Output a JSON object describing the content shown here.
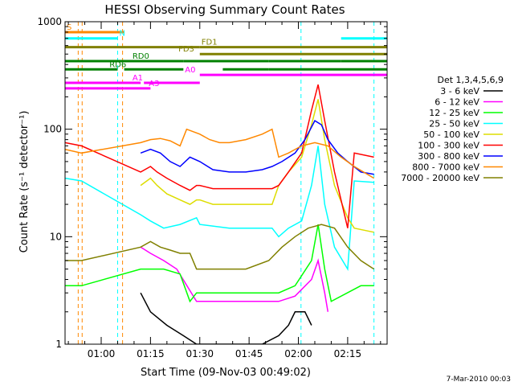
{
  "chart_data": {
    "type": "line",
    "title": "HESSI Observing Summary Count Rates",
    "xlabel": "Start Time (09-Nov-03 00:49:02)",
    "ylabel": "Count Rate (s⁻¹ detector⁻¹)",
    "yscale": "log",
    "ylim": [
      1,
      1000
    ],
    "xlim_minutes": [
      0,
      98
    ],
    "y_tick_labels": [
      "1",
      "10",
      "100",
      "1000"
    ],
    "x_ticks": [
      {
        "label": "01:00",
        "t": 11
      },
      {
        "label": "01:15",
        "t": 26
      },
      {
        "label": "01:30",
        "t": 41
      },
      {
        "label": "01:45",
        "t": 56
      },
      {
        "label": "02:00",
        "t": 71
      },
      {
        "label": "02:15",
        "t": 86
      }
    ],
    "legend_title": "Det 1,3,4,5,6,9",
    "legend_position": "right",
    "footer": "7-Mar-2010 00:03",
    "series": [
      {
        "name": "3 - 6 keV",
        "color": "#000000",
        "points": [
          [
            23,
            3
          ],
          [
            26,
            2
          ],
          [
            31,
            1.5
          ],
          [
            36,
            1.2
          ],
          [
            40,
            1
          ],
          [
            43,
            1
          ],
          [
            50,
            1
          ],
          [
            55,
            1
          ],
          [
            60,
            1
          ],
          [
            65,
            1.2
          ],
          [
            68,
            1.5
          ],
          [
            70,
            2
          ],
          [
            73,
            2
          ],
          [
            75,
            1.5
          ]
        ]
      },
      {
        "name": "6 - 12 keV",
        "color": "#ff00ff",
        "points": [
          [
            23,
            8
          ],
          [
            26,
            7
          ],
          [
            30,
            6
          ],
          [
            34,
            5
          ],
          [
            40,
            2.5
          ],
          [
            45,
            2.5
          ],
          [
            55,
            2.5
          ],
          [
            65,
            2.5
          ],
          [
            70,
            2.8
          ],
          [
            75,
            4
          ],
          [
            77,
            6
          ],
          [
            79,
            3
          ],
          [
            80,
            2
          ]
        ]
      },
      {
        "name": "12 - 25 keV",
        "color": "#00ff00",
        "points": [
          [
            0,
            3.5
          ],
          [
            5,
            3.5
          ],
          [
            23,
            5
          ],
          [
            26,
            5
          ],
          [
            30,
            5
          ],
          [
            35,
            4.5
          ],
          [
            38,
            2.5
          ],
          [
            40,
            3
          ],
          [
            45,
            3
          ],
          [
            55,
            3
          ],
          [
            65,
            3
          ],
          [
            70,
            3.5
          ],
          [
            75,
            6
          ],
          [
            77,
            13
          ],
          [
            79,
            5
          ],
          [
            81,
            2.5
          ],
          [
            90,
            3.5
          ],
          [
            94,
            3.5
          ]
        ]
      },
      {
        "name": "25 - 50 keV",
        "color": "#00ffff",
        "points": [
          [
            0,
            35
          ],
          [
            5,
            33
          ],
          [
            23,
            16
          ],
          [
            26,
            14
          ],
          [
            30,
            12
          ],
          [
            35,
            13
          ],
          [
            40,
            15
          ],
          [
            41,
            13
          ],
          [
            50,
            12
          ],
          [
            55,
            12
          ],
          [
            60,
            12
          ],
          [
            63,
            12
          ],
          [
            65,
            10
          ],
          [
            68,
            12
          ],
          [
            72,
            14
          ],
          [
            75,
            30
          ],
          [
            77,
            70
          ],
          [
            79,
            20
          ],
          [
            82,
            8
          ],
          [
            86,
            5
          ],
          [
            88,
            33
          ],
          [
            94,
            32
          ]
        ]
      },
      {
        "name": "50 - 100 keV",
        "color": "#dddd00",
        "points": [
          [
            23,
            30
          ],
          [
            26,
            35
          ],
          [
            28,
            30
          ],
          [
            31,
            25
          ],
          [
            35,
            22
          ],
          [
            38,
            20
          ],
          [
            40,
            22
          ],
          [
            41,
            22
          ],
          [
            45,
            20
          ],
          [
            50,
            20
          ],
          [
            55,
            20
          ],
          [
            60,
            20
          ],
          [
            63,
            20
          ],
          [
            65,
            30
          ],
          [
            68,
            40
          ],
          [
            72,
            55
          ],
          [
            75,
            110
          ],
          [
            77,
            190
          ],
          [
            79,
            80
          ],
          [
            82,
            30
          ],
          [
            86,
            15
          ],
          [
            88,
            12
          ],
          [
            94,
            11
          ]
        ]
      },
      {
        "name": "100 - 300 keV",
        "color": "#ff0000",
        "points": [
          [
            0,
            75
          ],
          [
            5,
            70
          ],
          [
            23,
            40
          ],
          [
            26,
            45
          ],
          [
            28,
            40
          ],
          [
            31,
            35
          ],
          [
            35,
            30
          ],
          [
            38,
            27
          ],
          [
            40,
            30
          ],
          [
            41,
            30
          ],
          [
            45,
            28
          ],
          [
            50,
            28
          ],
          [
            55,
            28
          ],
          [
            60,
            28
          ],
          [
            63,
            28
          ],
          [
            65,
            30
          ],
          [
            68,
            40
          ],
          [
            72,
            60
          ],
          [
            75,
            150
          ],
          [
            77,
            260
          ],
          [
            79,
            120
          ],
          [
            82,
            40
          ],
          [
            86,
            12
          ],
          [
            88,
            60
          ],
          [
            94,
            55
          ]
        ]
      },
      {
        "name": "300 - 800 keV",
        "color": "#0000ff",
        "points": [
          [
            23,
            60
          ],
          [
            26,
            65
          ],
          [
            29,
            60
          ],
          [
            32,
            50
          ],
          [
            35,
            45
          ],
          [
            38,
            55
          ],
          [
            41,
            50
          ],
          [
            45,
            42
          ],
          [
            50,
            40
          ],
          [
            55,
            40
          ],
          [
            60,
            42
          ],
          [
            63,
            45
          ],
          [
            66,
            50
          ],
          [
            70,
            60
          ],
          [
            73,
            80
          ],
          [
            76,
            120
          ],
          [
            78,
            110
          ],
          [
            80,
            80
          ],
          [
            83,
            60
          ],
          [
            86,
            50
          ],
          [
            90,
            40
          ],
          [
            94,
            38
          ]
        ]
      },
      {
        "name": "800 - 7000 keV",
        "color": "#ff8800",
        "points": [
          [
            0,
            65
          ],
          [
            5,
            60
          ],
          [
            23,
            75
          ],
          [
            26,
            80
          ],
          [
            29,
            82
          ],
          [
            32,
            78
          ],
          [
            35,
            70
          ],
          [
            37,
            100
          ],
          [
            41,
            90
          ],
          [
            44,
            80
          ],
          [
            47,
            75
          ],
          [
            50,
            75
          ],
          [
            55,
            80
          ],
          [
            60,
            90
          ],
          [
            63,
            100
          ],
          [
            65,
            55
          ],
          [
            68,
            60
          ],
          [
            72,
            70
          ],
          [
            76,
            75
          ],
          [
            80,
            70
          ],
          [
            84,
            55
          ],
          [
            88,
            45
          ],
          [
            94,
            35
          ]
        ]
      },
      {
        "name": "7000 - 20000 keV",
        "color": "#808000",
        "points": [
          [
            0,
            6
          ],
          [
            5,
            6
          ],
          [
            23,
            8
          ],
          [
            26,
            9
          ],
          [
            29,
            8
          ],
          [
            32,
            7.5
          ],
          [
            35,
            7
          ],
          [
            38,
            7
          ],
          [
            40,
            5
          ],
          [
            45,
            5
          ],
          [
            55,
            5
          ],
          [
            62,
            6
          ],
          [
            66,
            8
          ],
          [
            70,
            10
          ],
          [
            74,
            12
          ],
          [
            78,
            13
          ],
          [
            82,
            12
          ],
          [
            86,
            8
          ],
          [
            90,
            6
          ],
          [
            94,
            5
          ]
        ]
      }
    ],
    "flags": [
      {
        "label": "S",
        "color": "#ff8800",
        "y": 800,
        "segments": [
          [
            0,
            18
          ]
        ]
      },
      {
        "label": "N",
        "color": "#00ffff",
        "y": 700,
        "segments": [
          [
            0,
            16
          ],
          [
            84,
            98
          ]
        ]
      },
      {
        "label": "FD1",
        "color": "#808000",
        "y": 580,
        "segments": [
          [
            0,
            41
          ],
          [
            41,
            98
          ]
        ]
      },
      {
        "label": "FD3",
        "color": "#808000",
        "y": 500,
        "segments": [
          [
            41,
            98
          ]
        ]
      },
      {
        "label": "RD0",
        "color": "#008000",
        "y": 430,
        "segments": [
          [
            0,
            36
          ],
          [
            36,
            62
          ],
          [
            62,
            84
          ],
          [
            84,
            98
          ]
        ]
      },
      {
        "label": "RD6",
        "color": "#008000",
        "y": 360,
        "segments": [
          [
            0,
            16
          ],
          [
            18,
            36
          ],
          [
            48,
            62
          ],
          [
            62,
            98
          ]
        ]
      },
      {
        "label": "A0",
        "color": "#ff00ff",
        "y": 320,
        "segments": [
          [
            41,
            98
          ]
        ]
      },
      {
        "label": "A1",
        "color": "#ff00ff",
        "y": 270,
        "segments": [
          [
            0,
            23
          ],
          [
            24,
            41
          ]
        ]
      },
      {
        "label": "A3",
        "color": "#ff00ff",
        "y": 240,
        "segments": [
          [
            0,
            18
          ],
          [
            18,
            26
          ]
        ]
      }
    ],
    "flag_label_positions": {
      "S": 0,
      "N": 16,
      "FD1": 41,
      "FD3": 34,
      "RD0": 20,
      "RD6": 13,
      "A0": 36,
      "A1": 20,
      "A3": 25
    },
    "vertical_markers": [
      {
        "color": "#ff8800",
        "t": 4
      },
      {
        "color": "#ff8800",
        "t": 5.2
      },
      {
        "color": "#ff8800",
        "t": 17.5
      },
      {
        "color": "#00ffff",
        "t": 16
      },
      {
        "color": "#00ffff",
        "t": 71.8
      },
      {
        "color": "#00ffff",
        "t": 94
      }
    ]
  }
}
